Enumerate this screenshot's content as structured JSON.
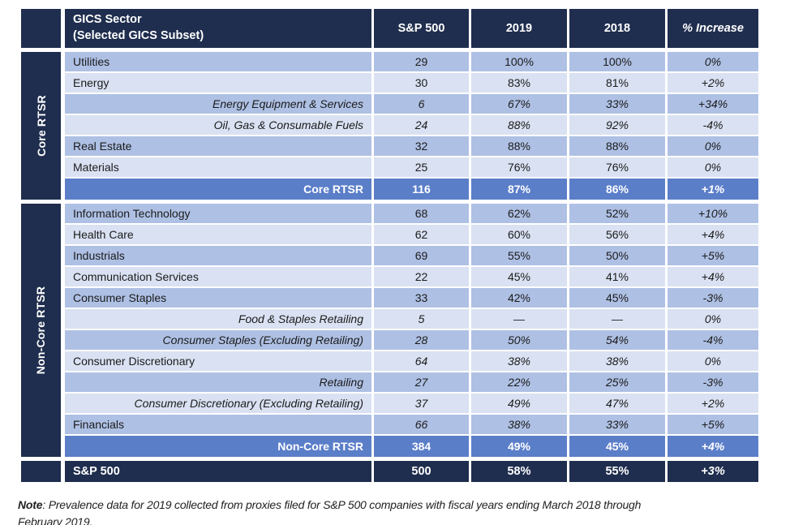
{
  "colors": {
    "dark_navy": "#1f2e4e",
    "row_medium_blue": "#aec0e4",
    "row_light_blue": "#d9e1f2",
    "total_row_blue": "#5b7ec9",
    "header_text": "#ffffff"
  },
  "table": {
    "header": {
      "col_sector_line1": "GICS Sector",
      "col_sector_line2": "(Selected GICS Subset)",
      "col_sp500": "S&P 500",
      "col_2019": "2019",
      "col_2018": "2018",
      "col_increase": "% Increase"
    },
    "sections": [
      {
        "group_label": "Core RTSR",
        "rows": [
          {
            "label": "Utilities",
            "sp500": "29",
            "y2019": "100%",
            "y2018": "100%",
            "increase": "0%",
            "shade": "medium",
            "style": "main"
          },
          {
            "label": "Energy",
            "sp500": "30",
            "y2019": "83%",
            "y2018": "81%",
            "increase": "+2%",
            "shade": "light",
            "style": "main"
          },
          {
            "label": "Energy Equipment & Services",
            "sp500": "6",
            "y2019": "67%",
            "y2018": "33%",
            "increase": "+34%",
            "shade": "medium",
            "style": "sub"
          },
          {
            "label": "Oil, Gas & Consumable Fuels",
            "sp500": "24",
            "y2019": "88%",
            "y2018": "92%",
            "increase": "-4%",
            "shade": "light",
            "style": "sub"
          },
          {
            "label": "Real Estate",
            "sp500": "32",
            "y2019": "88%",
            "y2018": "88%",
            "increase": "0%",
            "shade": "medium",
            "style": "main"
          },
          {
            "label": "Materials",
            "sp500": "25",
            "y2019": "76%",
            "y2018": "76%",
            "increase": "0%",
            "shade": "light",
            "style": "main"
          }
        ],
        "total": {
          "label": "Core RTSR",
          "sp500": "116",
          "y2019": "87%",
          "y2018": "86%",
          "increase": "+1%"
        }
      },
      {
        "group_label": "Non-Core RTSR",
        "rows": [
          {
            "label": "Information Technology",
            "sp500": "68",
            "y2019": "62%",
            "y2018": "52%",
            "increase": "+10%",
            "shade": "medium",
            "style": "main"
          },
          {
            "label": "Health Care",
            "sp500": "62",
            "y2019": "60%",
            "y2018": "56%",
            "increase": "+4%",
            "shade": "light",
            "style": "main"
          },
          {
            "label": "Industrials",
            "sp500": "69",
            "y2019": "55%",
            "y2018": "50%",
            "increase": "+5%",
            "shade": "medium",
            "style": "main"
          },
          {
            "label": "Communication Services",
            "sp500": "22",
            "y2019": "45%",
            "y2018": "41%",
            "increase": "+4%",
            "shade": "light",
            "style": "main"
          },
          {
            "label": "Consumer Staples",
            "sp500": "33",
            "y2019": "42%",
            "y2018": "45%",
            "increase": "-3%",
            "shade": "medium",
            "style": "main"
          },
          {
            "label": "Food & Staples Retailing",
            "sp500": "5",
            "y2019": "—",
            "y2018": "—",
            "increase": "0%",
            "shade": "light",
            "style": "sub"
          },
          {
            "label": "Consumer Staples (Excluding Retailing)",
            "sp500": "28",
            "y2019": "50%",
            "y2018": "54%",
            "increase": "-4%",
            "shade": "medium",
            "style": "sub"
          },
          {
            "label": "Consumer Discretionary",
            "sp500": "64",
            "y2019": "38%",
            "y2018": "38%",
            "increase": "0%",
            "shade": "light",
            "style": "main-italic-values"
          },
          {
            "label": "Retailing",
            "sp500": "27",
            "y2019": "22%",
            "y2018": "25%",
            "increase": "-3%",
            "shade": "medium",
            "style": "sub"
          },
          {
            "label": "Consumer Discretionary (Excluding Retailing)",
            "sp500": "37",
            "y2019": "49%",
            "y2018": "47%",
            "increase": "+2%",
            "shade": "light",
            "style": "sub"
          },
          {
            "label": "Financials",
            "sp500": "66",
            "y2019": "38%",
            "y2018": "33%",
            "increase": "+5%",
            "shade": "medium",
            "style": "main-italic-values"
          }
        ],
        "total": {
          "label": "Non-Core RTSR",
          "sp500": "384",
          "y2019": "49%",
          "y2018": "45%",
          "increase": "+4%"
        }
      }
    ],
    "footer_row": {
      "label": "S&P 500",
      "sp500": "500",
      "y2019": "58%",
      "y2018": "55%",
      "increase": "+3%"
    }
  },
  "note": {
    "label": "Note",
    "text_line1": ": Prevalence data for 2019 collected from proxies filed for S&P 500 companies with fiscal years ending March 2018 through",
    "text_line2": "February 2019."
  }
}
